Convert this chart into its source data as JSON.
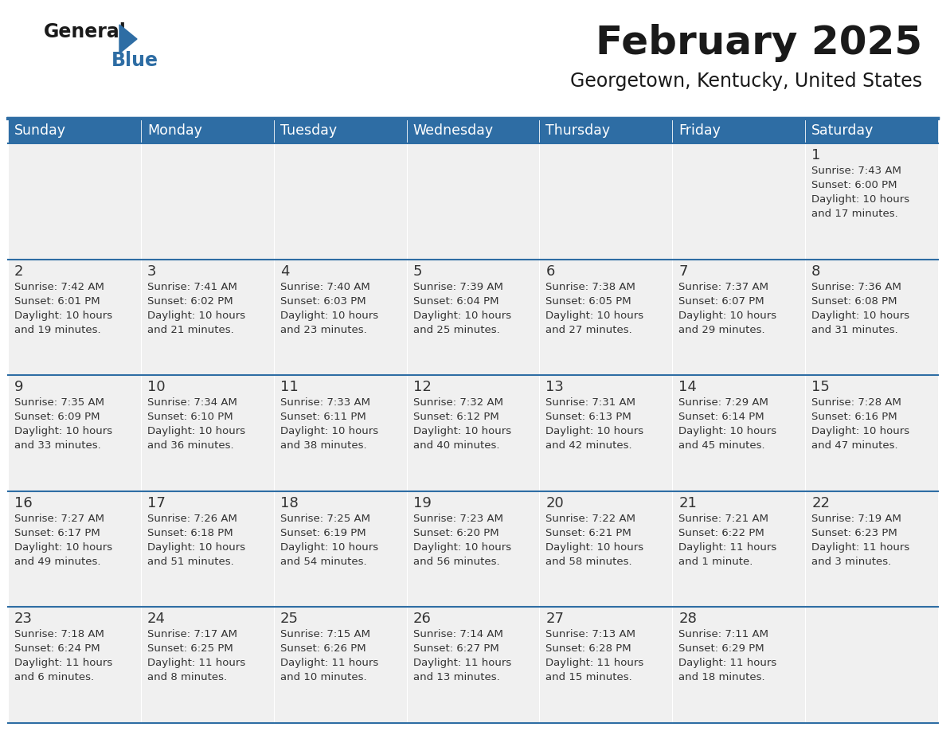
{
  "title": "February 2025",
  "subtitle": "Georgetown, Kentucky, United States",
  "days_of_week": [
    "Sunday",
    "Monday",
    "Tuesday",
    "Wednesday",
    "Thursday",
    "Friday",
    "Saturday"
  ],
  "header_bg": "#2E6DA4",
  "header_text": "#FFFFFF",
  "cell_bg": "#F0F0F0",
  "cell_bg_white": "#FFFFFF",
  "border_color": "#2E6DA4",
  "day_num_color": "#333333",
  "info_color": "#333333",
  "title_color": "#1a1a1a",
  "subtitle_color": "#1a1a1a",
  "logo_general_color": "#1a1a1a",
  "logo_blue_color": "#2E6DA4",
  "weeks": [
    [
      null,
      null,
      null,
      null,
      null,
      null,
      1
    ],
    [
      2,
      3,
      4,
      5,
      6,
      7,
      8
    ],
    [
      9,
      10,
      11,
      12,
      13,
      14,
      15
    ],
    [
      16,
      17,
      18,
      19,
      20,
      21,
      22
    ],
    [
      23,
      24,
      25,
      26,
      27,
      28,
      null
    ]
  ],
  "cell_data": {
    "1": [
      "Sunrise: 7:43 AM",
      "Sunset: 6:00 PM",
      "Daylight: 10 hours",
      "and 17 minutes."
    ],
    "2": [
      "Sunrise: 7:42 AM",
      "Sunset: 6:01 PM",
      "Daylight: 10 hours",
      "and 19 minutes."
    ],
    "3": [
      "Sunrise: 7:41 AM",
      "Sunset: 6:02 PM",
      "Daylight: 10 hours",
      "and 21 minutes."
    ],
    "4": [
      "Sunrise: 7:40 AM",
      "Sunset: 6:03 PM",
      "Daylight: 10 hours",
      "and 23 minutes."
    ],
    "5": [
      "Sunrise: 7:39 AM",
      "Sunset: 6:04 PM",
      "Daylight: 10 hours",
      "and 25 minutes."
    ],
    "6": [
      "Sunrise: 7:38 AM",
      "Sunset: 6:05 PM",
      "Daylight: 10 hours",
      "and 27 minutes."
    ],
    "7": [
      "Sunrise: 7:37 AM",
      "Sunset: 6:07 PM",
      "Daylight: 10 hours",
      "and 29 minutes."
    ],
    "8": [
      "Sunrise: 7:36 AM",
      "Sunset: 6:08 PM",
      "Daylight: 10 hours",
      "and 31 minutes."
    ],
    "9": [
      "Sunrise: 7:35 AM",
      "Sunset: 6:09 PM",
      "Daylight: 10 hours",
      "and 33 minutes."
    ],
    "10": [
      "Sunrise: 7:34 AM",
      "Sunset: 6:10 PM",
      "Daylight: 10 hours",
      "and 36 minutes."
    ],
    "11": [
      "Sunrise: 7:33 AM",
      "Sunset: 6:11 PM",
      "Daylight: 10 hours",
      "and 38 minutes."
    ],
    "12": [
      "Sunrise: 7:32 AM",
      "Sunset: 6:12 PM",
      "Daylight: 10 hours",
      "and 40 minutes."
    ],
    "13": [
      "Sunrise: 7:31 AM",
      "Sunset: 6:13 PM",
      "Daylight: 10 hours",
      "and 42 minutes."
    ],
    "14": [
      "Sunrise: 7:29 AM",
      "Sunset: 6:14 PM",
      "Daylight: 10 hours",
      "and 45 minutes."
    ],
    "15": [
      "Sunrise: 7:28 AM",
      "Sunset: 6:16 PM",
      "Daylight: 10 hours",
      "and 47 minutes."
    ],
    "16": [
      "Sunrise: 7:27 AM",
      "Sunset: 6:17 PM",
      "Daylight: 10 hours",
      "and 49 minutes."
    ],
    "17": [
      "Sunrise: 7:26 AM",
      "Sunset: 6:18 PM",
      "Daylight: 10 hours",
      "and 51 minutes."
    ],
    "18": [
      "Sunrise: 7:25 AM",
      "Sunset: 6:19 PM",
      "Daylight: 10 hours",
      "and 54 minutes."
    ],
    "19": [
      "Sunrise: 7:23 AM",
      "Sunset: 6:20 PM",
      "Daylight: 10 hours",
      "and 56 minutes."
    ],
    "20": [
      "Sunrise: 7:22 AM",
      "Sunset: 6:21 PM",
      "Daylight: 10 hours",
      "and 58 minutes."
    ],
    "21": [
      "Sunrise: 7:21 AM",
      "Sunset: 6:22 PM",
      "Daylight: 11 hours",
      "and 1 minute."
    ],
    "22": [
      "Sunrise: 7:19 AM",
      "Sunset: 6:23 PM",
      "Daylight: 11 hours",
      "and 3 minutes."
    ],
    "23": [
      "Sunrise: 7:18 AM",
      "Sunset: 6:24 PM",
      "Daylight: 11 hours",
      "and 6 minutes."
    ],
    "24": [
      "Sunrise: 7:17 AM",
      "Sunset: 6:25 PM",
      "Daylight: 11 hours",
      "and 8 minutes."
    ],
    "25": [
      "Sunrise: 7:15 AM",
      "Sunset: 6:26 PM",
      "Daylight: 11 hours",
      "and 10 minutes."
    ],
    "26": [
      "Sunrise: 7:14 AM",
      "Sunset: 6:27 PM",
      "Daylight: 11 hours",
      "and 13 minutes."
    ],
    "27": [
      "Sunrise: 7:13 AM",
      "Sunset: 6:28 PM",
      "Daylight: 11 hours",
      "and 15 minutes."
    ],
    "28": [
      "Sunrise: 7:11 AM",
      "Sunset: 6:29 PM",
      "Daylight: 11 hours",
      "and 18 minutes."
    ]
  }
}
